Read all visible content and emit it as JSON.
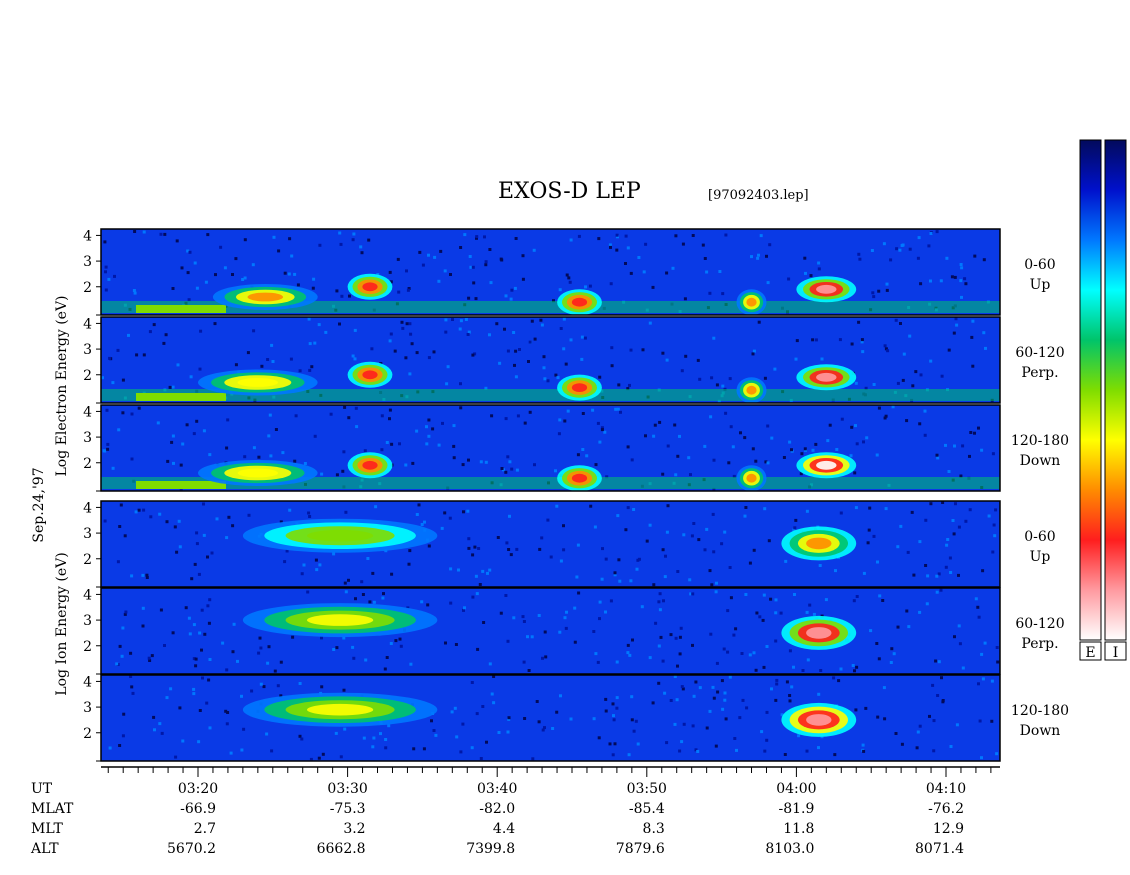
{
  "chart_data": {
    "type": "heatmap",
    "title": "EXOS-D LEP",
    "subtitle": "[97092403.lep]",
    "date_label": "Sep.24,'97",
    "colorbars": [
      {
        "label": "E",
        "colors": [
          "#ffffff",
          "#ff9aa0",
          "#ff1e1e",
          "#ff8c00",
          "#ffff00",
          "#7fdd00",
          "#00c46a",
          "#00ffff",
          "#0078ff",
          "#0011cc",
          "#020a5c"
        ]
      },
      {
        "label": "I",
        "colors": [
          "#ffffff",
          "#ff9aa0",
          "#ff1e1e",
          "#ff8c00",
          "#ffff00",
          "#7fdd00",
          "#00c46a",
          "#00ffff",
          "#0078ff",
          "#0011cc",
          "#020a5c"
        ]
      }
    ],
    "groups": [
      {
        "ylabel": "Log  Electron  Energy (eV)",
        "yticks": [
          "4",
          "3",
          "2"
        ],
        "panels": [
          {
            "angle": "0-60",
            "direction": "Up",
            "bursts": [
              [
                3.21,
                3.28,
                1.6,
                0.7
              ],
              [
                3.3,
                3.33,
                2.0,
                0.85
              ],
              [
                3.44,
                3.47,
                1.4,
                0.8
              ],
              [
                3.56,
                3.58,
                1.4,
                0.7
              ],
              [
                4.0,
                4.04,
                1.9,
                0.9
              ]
            ]
          },
          {
            "angle": "60-120",
            "direction": "Perp.",
            "bursts": [
              [
                3.2,
                3.28,
                1.7,
                0.65
              ],
              [
                3.3,
                3.33,
                2.0,
                0.85
              ],
              [
                3.44,
                3.47,
                1.5,
                0.8
              ],
              [
                3.56,
                3.58,
                1.4,
                0.7
              ],
              [
                4.0,
                4.04,
                1.9,
                0.9
              ]
            ]
          },
          {
            "angle": "120-180",
            "direction": "Down",
            "bursts": [
              [
                3.2,
                3.28,
                1.6,
                0.65
              ],
              [
                3.3,
                3.33,
                1.9,
                0.85
              ],
              [
                3.44,
                3.47,
                1.4,
                0.8
              ],
              [
                3.56,
                3.58,
                1.4,
                0.7
              ],
              [
                4.0,
                4.04,
                1.9,
                0.98
              ]
            ]
          }
        ]
      },
      {
        "ylabel": "Log  Ion  Energy (eV)",
        "yticks": [
          "4",
          "3",
          "2"
        ],
        "panels": [
          {
            "angle": "0-60",
            "direction": "Up",
            "bursts": [
              [
                3.23,
                3.36,
                2.9,
                0.55
              ],
              [
                3.59,
                4.04,
                2.6,
                0.75
              ]
            ]
          },
          {
            "angle": "60-120",
            "direction": "Perp.",
            "bursts": [
              [
                3.23,
                3.36,
                3.0,
                0.6
              ],
              [
                3.59,
                4.04,
                2.5,
                0.9
              ]
            ]
          },
          {
            "angle": "120-180",
            "direction": "Down",
            "bursts": [
              [
                3.23,
                3.36,
                2.9,
                0.6
              ],
              [
                3.59,
                4.04,
                2.5,
                0.92
              ]
            ]
          }
        ]
      }
    ],
    "x_ticks": [
      "03:20",
      "03:30",
      "03:40",
      "03:50",
      "04:00",
      "04:10"
    ],
    "ephemeris": [
      {
        "name": "UT",
        "values": [
          "03:20",
          "03:30",
          "03:40",
          "03:50",
          "04:00",
          "04:10"
        ]
      },
      {
        "name": "MLAT",
        "values": [
          "-66.9",
          "-75.3",
          "-82.0",
          "-85.4",
          "-81.9",
          "-76.2"
        ]
      },
      {
        "name": "MLT",
        "values": [
          "2.7",
          "3.2",
          "4.4",
          "8.3",
          "11.8",
          "12.9"
        ]
      },
      {
        "name": "ALT",
        "values": [
          "5670.2",
          "6662.8",
          "7399.8",
          "7879.6",
          "8103.0",
          "8071.4"
        ]
      }
    ]
  }
}
